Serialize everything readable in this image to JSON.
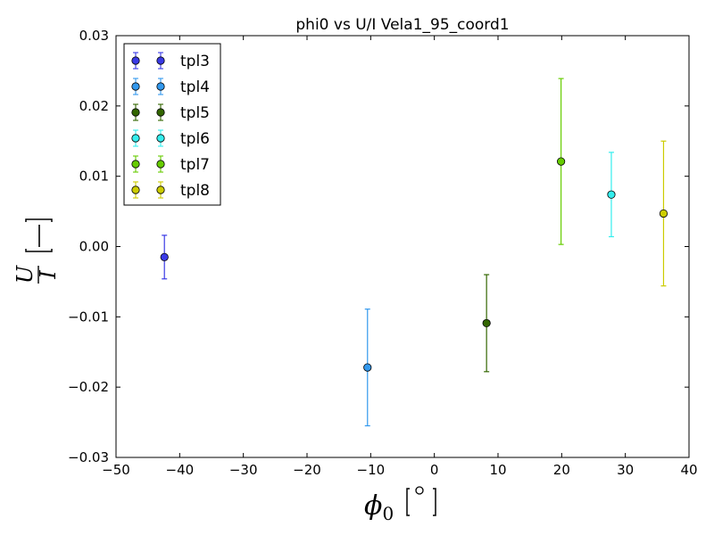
{
  "chart_data": {
    "type": "scatter",
    "title": "phi0 vs U/I Vela1_95_coord1",
    "xlabel": "φ0 [°]",
    "ylabel": "U/I [—]",
    "xlim": [
      -50,
      40
    ],
    "ylim": [
      -0.03,
      0.03
    ],
    "xticks": [
      -50,
      -40,
      -30,
      -20,
      -10,
      0,
      10,
      20,
      30,
      40
    ],
    "xtick_labels": [
      "−50",
      "−40",
      "−30",
      "−20",
      "−10",
      "0",
      "10",
      "20",
      "30",
      "40"
    ],
    "yticks": [
      -0.03,
      -0.02,
      -0.01,
      0.0,
      0.01,
      0.02,
      0.03
    ],
    "ytick_labels": [
      "−0.03",
      "−0.02",
      "−0.01",
      "0.00",
      "0.01",
      "0.02",
      "0.03"
    ],
    "legend_position": "top-left",
    "series": [
      {
        "name": "tpl3",
        "color": "#3a3ae6",
        "x": -42.4,
        "y": -0.0015,
        "yerr": 0.0031
      },
      {
        "name": "tpl4",
        "color": "#3399ee",
        "x": -10.5,
        "y": -0.0172,
        "yerr": 0.0083
      },
      {
        "name": "tpl5",
        "color": "#336600",
        "x": 8.2,
        "y": -0.0109,
        "yerr": 0.0069
      },
      {
        "name": "tpl6",
        "color": "#33eeee",
        "x": 27.8,
        "y": 0.0074,
        "yerr": 0.006
      },
      {
        "name": "tpl7",
        "color": "#66cc00",
        "x": 19.9,
        "y": 0.0121,
        "yerr": 0.0118
      },
      {
        "name": "tpl8",
        "color": "#cccc00",
        "x": 36.0,
        "y": 0.0047,
        "yerr": 0.0103
      }
    ]
  }
}
